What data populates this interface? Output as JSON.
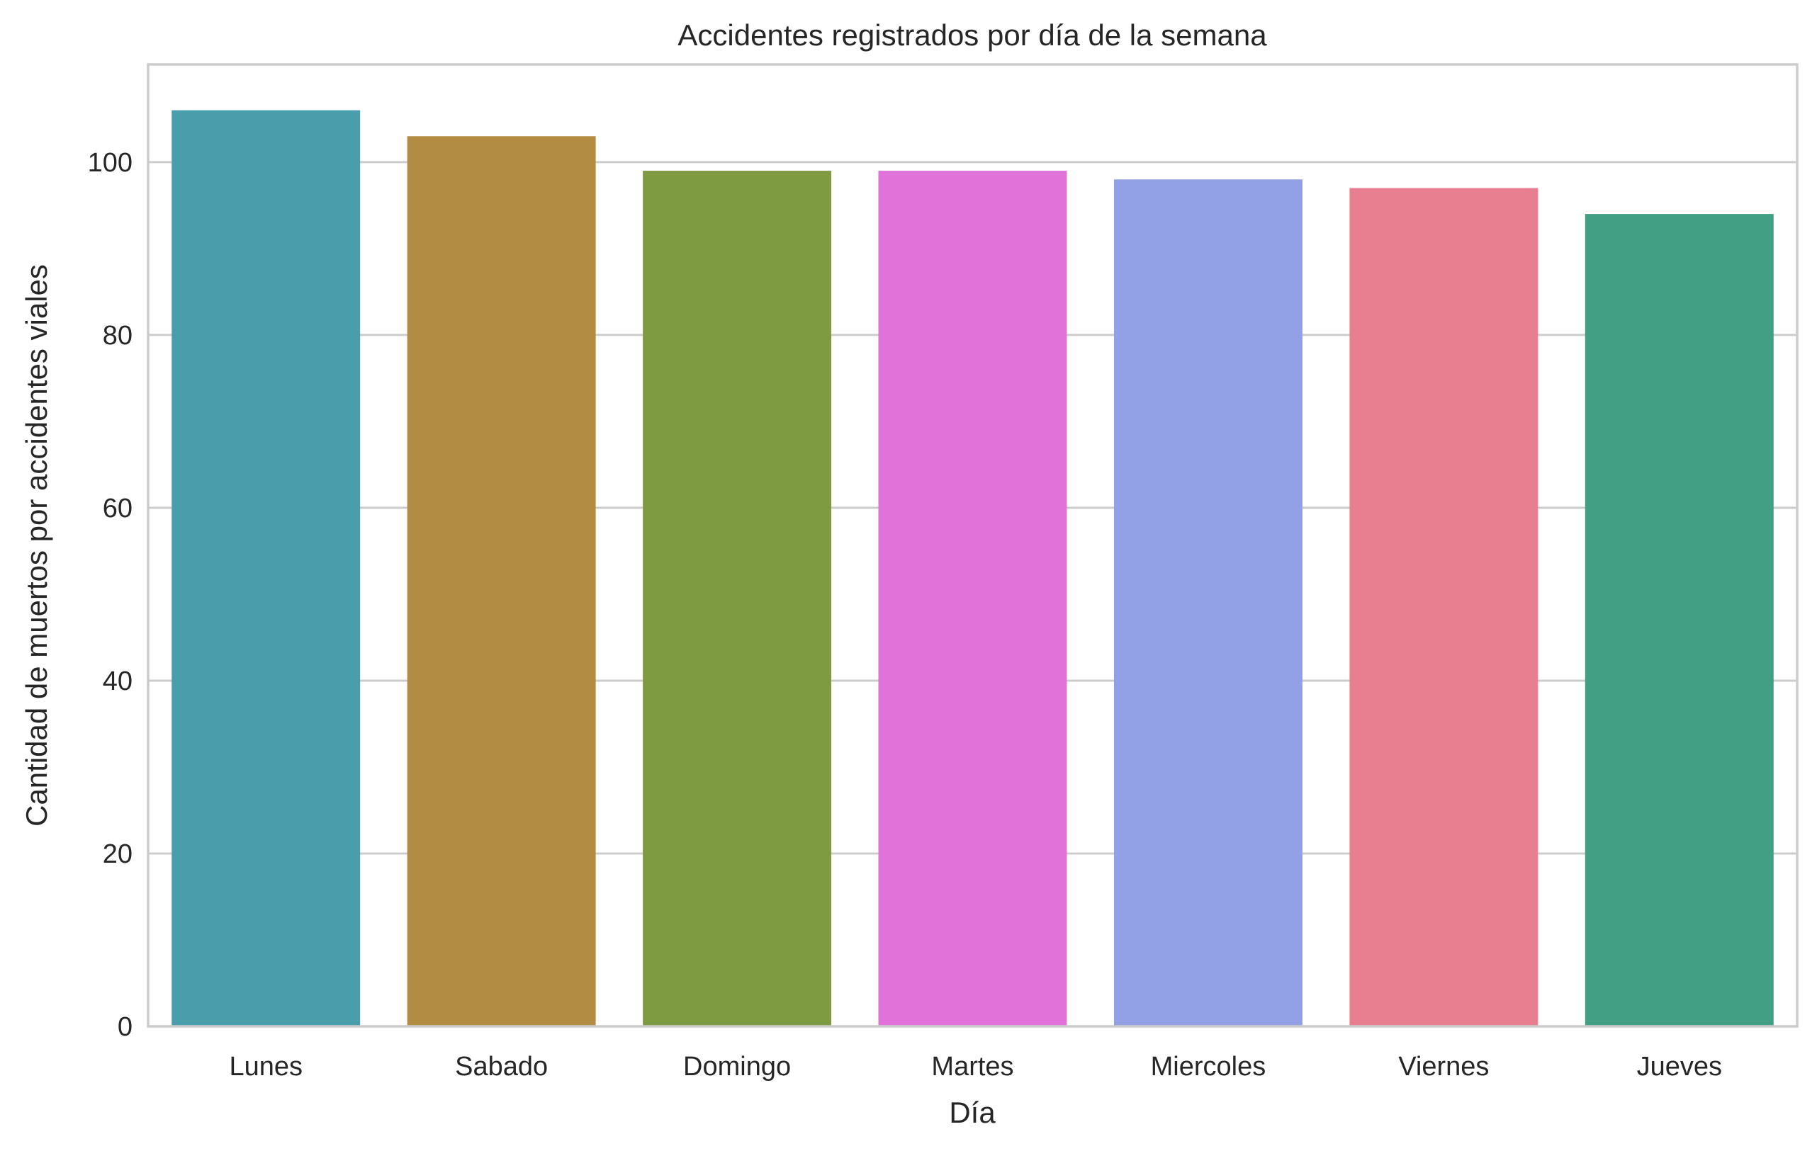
{
  "chart_data": {
    "type": "bar",
    "title": "Accidentes registrados por día de la semana",
    "xlabel": "Día",
    "ylabel": "Cantidad de muertos por accidentes viales",
    "categories": [
      "Lunes",
      "Sabado",
      "Domingo",
      "Martes",
      "Miercoles",
      "Viernes",
      "Jueves"
    ],
    "values": [
      106,
      103,
      99,
      99,
      98,
      97,
      94
    ],
    "colors": [
      "#4a9dab",
      "#b38c43",
      "#7f9b42",
      "#e072da",
      "#92a0e5",
      "#e77f91",
      "#429f84"
    ],
    "ylim": [
      0,
      111.3
    ],
    "yticks": [
      0,
      20,
      40,
      60,
      80,
      100
    ],
    "grid": true,
    "legend": "none"
  }
}
